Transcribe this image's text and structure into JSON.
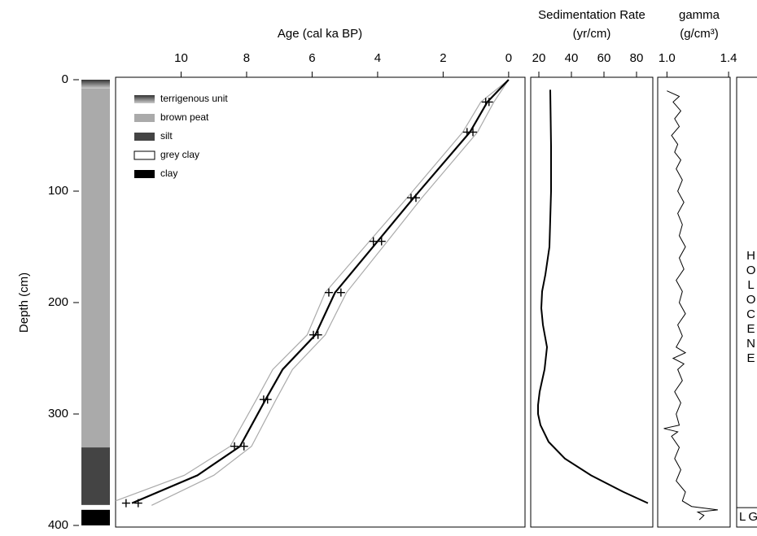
{
  "chart_data": [
    {
      "type": "lithology",
      "ylabel": "Depth (cm)",
      "ylim": [
        0,
        400
      ],
      "yticks": [
        0,
        100,
        200,
        300,
        400
      ],
      "units": [
        {
          "name": "terrigenous unit",
          "color": "#333333",
          "gradient": true,
          "top": 0,
          "bottom": 8
        },
        {
          "name": "brown peat",
          "color": "#aaaaaa",
          "top": 8,
          "bottom": 330
        },
        {
          "name": "silt",
          "color": "#444444",
          "top": 330,
          "bottom": 382
        },
        {
          "name": "grey clay",
          "color": "#ffffff",
          "top": 382,
          "bottom": 386
        },
        {
          "name": "clay",
          "color": "#000000",
          "top": 386,
          "bottom": 400
        }
      ]
    },
    {
      "type": "age-depth",
      "title": "Age (cal ka BP)",
      "xlim": [
        12,
        -0.5
      ],
      "xticks": [
        10,
        8,
        6,
        4,
        2,
        0
      ],
      "ylim": [
        0,
        400
      ],
      "dates": {
        "depth": [
          20,
          20,
          47,
          47,
          106,
          106,
          145,
          145,
          191,
          191,
          229,
          229,
          287,
          287,
          329,
          329,
          380,
          380
        ],
        "values": [
          0.7,
          0.6,
          1.27,
          1.09,
          2.98,
          2.83,
          4.13,
          3.88,
          5.49,
          5.12,
          5.96,
          5.82,
          7.48,
          7.36,
          8.37,
          8.08,
          11.68,
          11.31
        ]
      },
      "model": {
        "color": "#000000",
        "depth": [
          0,
          20,
          47,
          106,
          145,
          191,
          229,
          260,
          287,
          329,
          355,
          380
        ],
        "values": [
          0,
          0.65,
          1.18,
          2.9,
          4.0,
          5.3,
          5.9,
          6.9,
          7.42,
          8.2,
          9.5,
          11.5
        ]
      },
      "envelope": [
        {
          "color": "#aaaaaa",
          "depth": [
            0,
            20,
            47,
            106,
            145,
            191,
            229,
            260,
            287,
            329,
            355,
            378
          ],
          "values": [
            0,
            0.85,
            1.4,
            3.1,
            4.25,
            5.6,
            6.15,
            7.2,
            7.7,
            8.5,
            9.9,
            12
          ]
        },
        {
          "color": "#aaaaaa",
          "depth": [
            0,
            20,
            47,
            106,
            145,
            191,
            229,
            260,
            287,
            329,
            355,
            382
          ],
          "values": [
            0,
            0.45,
            0.95,
            2.65,
            3.7,
            4.95,
            5.6,
            6.6,
            7.1,
            7.85,
            9.0,
            10.9
          ]
        }
      ]
    },
    {
      "type": "profile",
      "title": "Sedimentation Rate",
      "xlabel": "(yr/cm)",
      "xlim": [
        15,
        90
      ],
      "xticks": [
        20,
        40,
        60,
        80
      ],
      "ylim": [
        0,
        400
      ],
      "color": "#000000",
      "depth": [
        9,
        60,
        100,
        150,
        175,
        190,
        205,
        220,
        240,
        260,
        280,
        292,
        300,
        310,
        325,
        340,
        355,
        370,
        380
      ],
      "values": [
        27,
        27.5,
        27.5,
        26.5,
        24,
        22,
        21.5,
        22.5,
        25,
        23.5,
        20.5,
        19.5,
        19.5,
        21,
        26,
        36,
        52,
        72,
        87
      ]
    },
    {
      "type": "profile",
      "title": "gamma",
      "xlabel": "(g/cm³)",
      "xlim": [
        0.94,
        1.41
      ],
      "xticks": [
        {
          "value": 1,
          "label": "1.0"
        },
        {
          "value": 1.4,
          "label": "1.4"
        }
      ],
      "ylim": [
        0,
        400
      ],
      "color": "#000000",
      "depth": [
        10,
        15,
        20,
        28,
        35,
        42,
        50,
        58,
        65,
        72,
        80,
        90,
        100,
        110,
        120,
        130,
        140,
        150,
        160,
        170,
        180,
        190,
        200,
        210,
        220,
        230,
        240,
        245,
        250,
        255,
        260,
        270,
        280,
        290,
        300,
        310,
        313,
        316,
        320,
        330,
        340,
        350,
        360,
        370,
        378,
        383,
        386,
        388,
        391,
        395
      ],
      "values": [
        1.0,
        1.08,
        1.04,
        1.09,
        1.05,
        1.08,
        1.03,
        1.07,
        1.05,
        1.09,
        1.06,
        1.1,
        1.07,
        1.11,
        1.07,
        1.1,
        1.08,
        1.12,
        1.08,
        1.11,
        1.06,
        1.1,
        1.08,
        1.12,
        1.07,
        1.1,
        1.06,
        1.12,
        1.04,
        1.11,
        1.07,
        1.1,
        1.05,
        1.09,
        1.06,
        1.08,
        0.98,
        1.07,
        1.03,
        1.08,
        1.05,
        1.09,
        1.06,
        1.12,
        1.1,
        1.16,
        1.33,
        1.2,
        1.24,
        1.21
      ]
    },
    {
      "type": "stratigraphy",
      "units": [
        {
          "name": "HOLOCENE",
          "top": 0,
          "bottom": 384
        },
        {
          "name": "LG",
          "top": 384,
          "bottom": 400
        }
      ]
    }
  ]
}
